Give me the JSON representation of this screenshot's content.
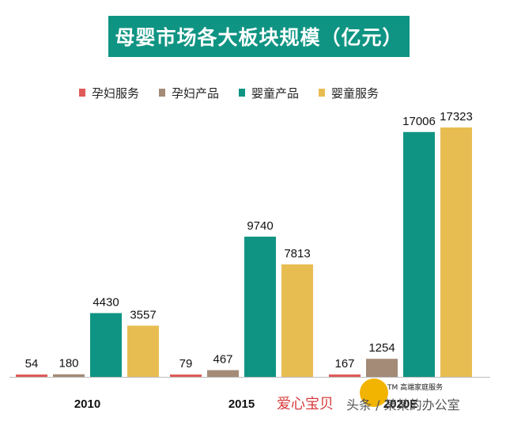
{
  "title": "母婴市场各大板块规模（亿元）",
  "legend": [
    {
      "label": "孕妇服务",
      "color": "#e05a58"
    },
    {
      "label": "孕妇产品",
      "color": "#a38b77"
    },
    {
      "label": "婴童产品",
      "color": "#0f9483"
    },
    {
      "label": "婴童服务",
      "color": "#e7bd52"
    }
  ],
  "chart_data": {
    "type": "bar",
    "title": "母婴市场各大板块规模（亿元）",
    "categories": [
      "2010",
      "2015",
      "2020E"
    ],
    "series": [
      {
        "name": "孕妇服务",
        "values": [
          54,
          79,
          167
        ]
      },
      {
        "name": "孕妇产品",
        "values": [
          180,
          467,
          1254
        ]
      },
      {
        "name": "婴童产品",
        "values": [
          4430,
          9740,
          17006
        ]
      },
      {
        "name": "婴童服务",
        "values": [
          3557,
          7813,
          17323
        ]
      }
    ],
    "colors": [
      "#e05a58",
      "#a38b77",
      "#0f9483",
      "#e7bd52"
    ],
    "ylim": [
      0,
      17323
    ],
    "grid": false,
    "legend_position": "top"
  },
  "watermark": {
    "text1": "爱心宝贝",
    "text2": "头条 / 某某的办公室",
    "small": "TM 高端家庭服务"
  }
}
